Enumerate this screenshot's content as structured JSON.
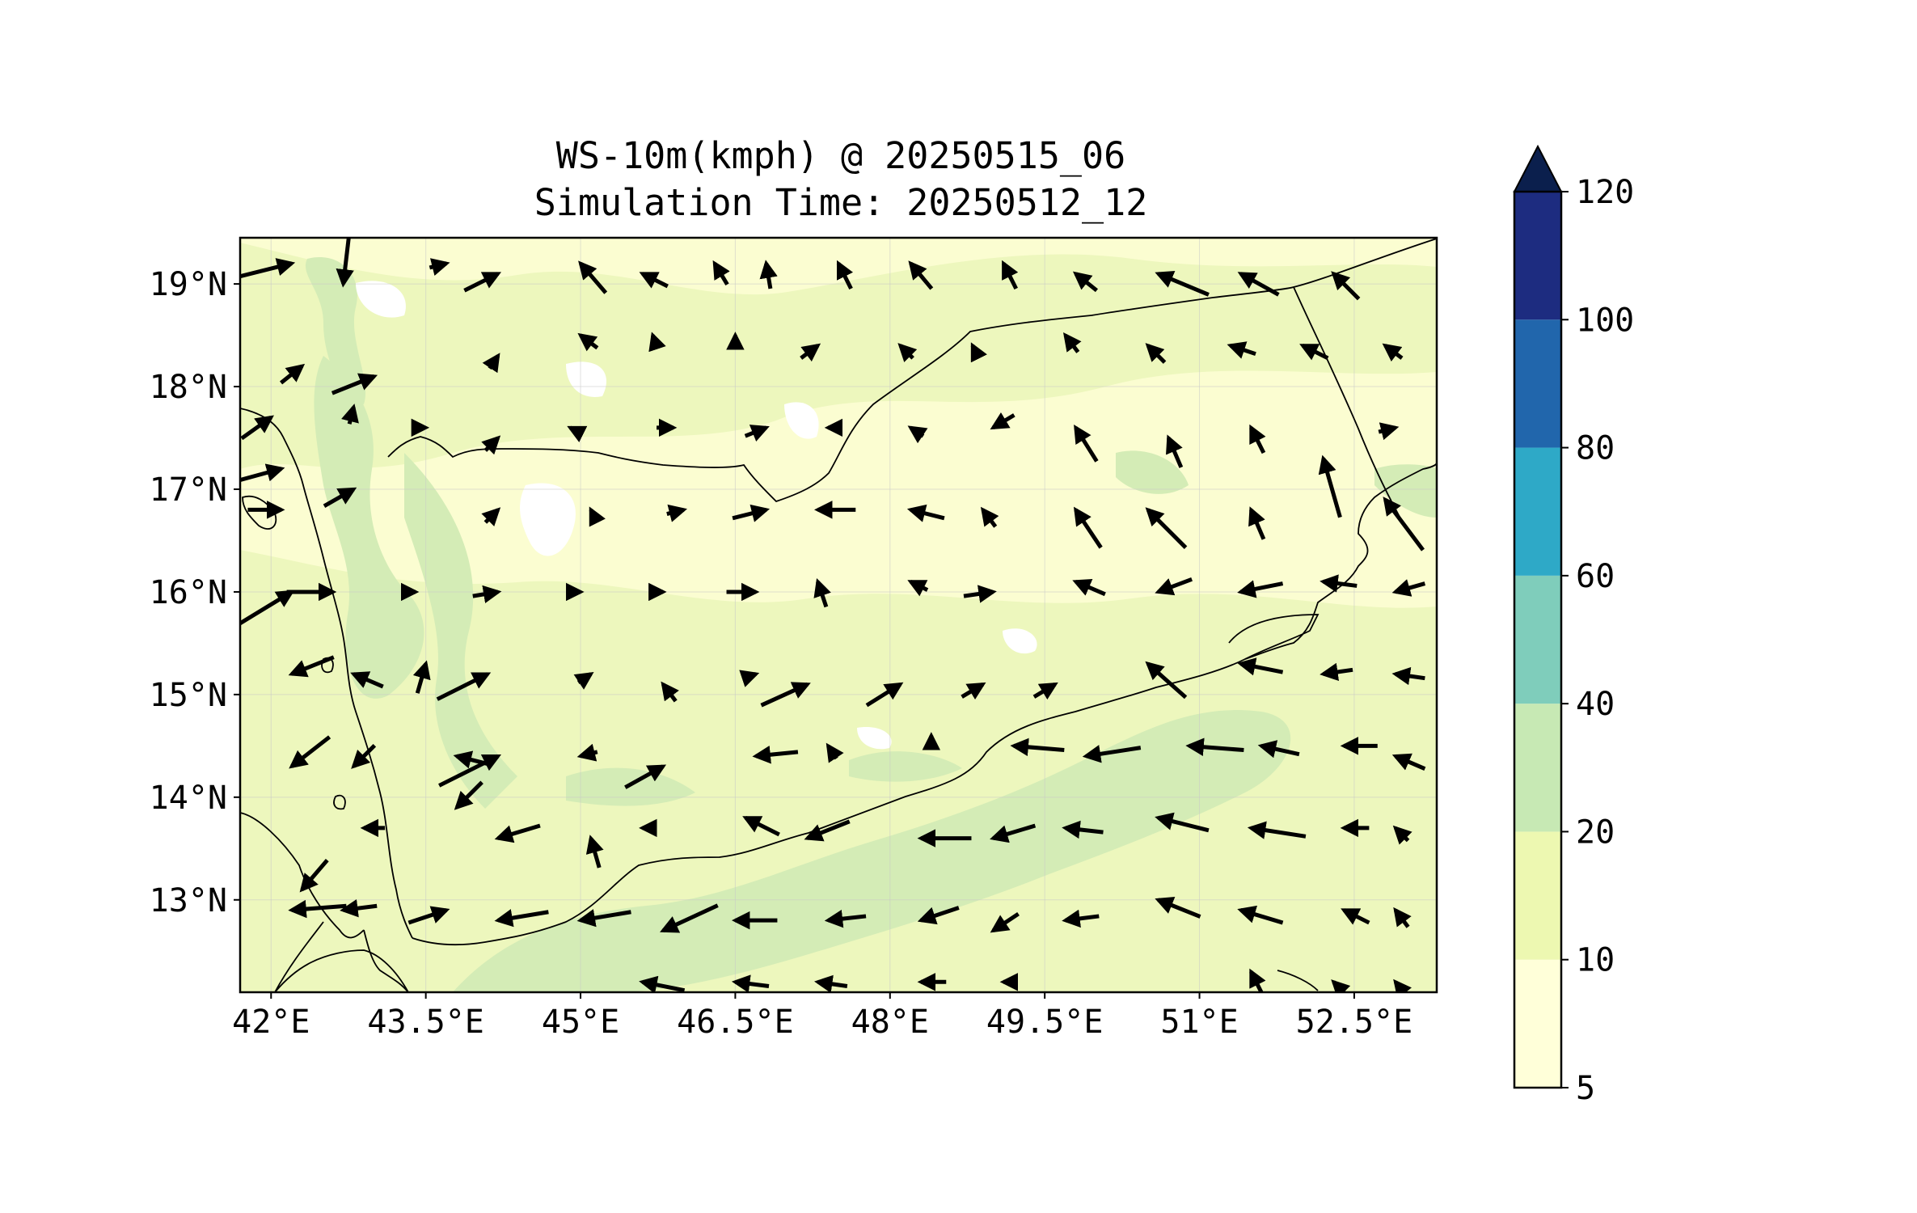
{
  "title": "WS-10m(kmph) @ 20250515_06",
  "subtitle": "Simulation Time: 20250512_12",
  "map": {
    "lon_range": [
      41.7,
      53.3
    ],
    "lat_range": [
      12.1,
      19.45
    ],
    "x_ticks": [
      {
        "value": 42,
        "label": "42°E"
      },
      {
        "value": 43.5,
        "label": "43.5°E"
      },
      {
        "value": 45,
        "label": "45°E"
      },
      {
        "value": 46.5,
        "label": "46.5°E"
      },
      {
        "value": 48,
        "label": "48°E"
      },
      {
        "value": 49.5,
        "label": "49.5°E"
      },
      {
        "value": 51,
        "label": "51°E"
      },
      {
        "value": 52.5,
        "label": "52.5°E"
      }
    ],
    "y_ticks": [
      {
        "value": 13,
        "label": "13°N"
      },
      {
        "value": 14,
        "label": "14°N"
      },
      {
        "value": 15,
        "label": "15°N"
      },
      {
        "value": 16,
        "label": "16°N"
      },
      {
        "value": 17,
        "label": "17°N"
      },
      {
        "value": 18,
        "label": "18°N"
      },
      {
        "value": 19,
        "label": "19°N"
      }
    ],
    "colors": {
      "land_base": "#fbfdd1",
      "band_10_20": "#edf7bd",
      "band_20_40": "#d4ecb6",
      "low_below_5": "#ffffff",
      "border": "#000000",
      "arrow": "#000000"
    }
  },
  "colorbar": {
    "levels": [
      5,
      10,
      20,
      40,
      60,
      80,
      100,
      120
    ],
    "tick_labels": [
      "5",
      "10",
      "20",
      "40",
      "60",
      "80",
      "100",
      "120"
    ],
    "colors": [
      "#ffffd9",
      "#edf8b1",
      "#c7e9b4",
      "#7fcdbb",
      "#2ea9c7",
      "#2166ac",
      "#1d2c80"
    ],
    "extend_color": "#0b1f4d",
    "extend": "max"
  },
  "wind_vectors_kmph": [
    [
      42.2,
      19.2,
      20,
      5
    ],
    [
      42.7,
      19,
      -2,
      -17
    ],
    [
      43.7,
      19.2,
      4,
      1
    ],
    [
      44.2,
      19.1,
      8,
      4
    ],
    [
      45,
      19.2,
      -6,
      7
    ],
    [
      45.6,
      19.1,
      -6,
      3
    ],
    [
      46.3,
      19.2,
      -3,
      5
    ],
    [
      46.8,
      19.2,
      -1,
      6
    ],
    [
      47.5,
      19.2,
      -3,
      6
    ],
    [
      48.2,
      19.2,
      -5,
      6
    ],
    [
      49.1,
      19.2,
      -3,
      6
    ],
    [
      49.8,
      19.1,
      -5,
      4
    ],
    [
      50.6,
      19.1,
      -12,
      5
    ],
    [
      51.4,
      19.1,
      -9,
      5
    ],
    [
      52.3,
      19.1,
      -6,
      6
    ],
    [
      42.3,
      18.2,
      5,
      4
    ],
    [
      43,
      18.1,
      10,
      4
    ],
    [
      44.2,
      18.3,
      2,
      3
    ],
    [
      45,
      18.5,
      -4,
      3
    ],
    [
      45.7,
      18.5,
      -1,
      3
    ],
    [
      46.5,
      18.5,
      0,
      2
    ],
    [
      47.3,
      18.4,
      4,
      3
    ],
    [
      48.1,
      18.4,
      -3,
      3
    ],
    [
      48.8,
      18.4,
      -1,
      2
    ],
    [
      49.7,
      18.5,
      -3,
      4
    ],
    [
      50.5,
      18.4,
      -4,
      4
    ],
    [
      51.3,
      18.4,
      -6,
      2
    ],
    [
      52,
      18.4,
      -6,
      3
    ],
    [
      52.8,
      18.4,
      -4,
      3
    ],
    [
      42.0,
      17.7,
      7,
      5
    ],
    [
      42.8,
      17.8,
      1,
      4
    ],
    [
      43.5,
      17.6,
      0,
      0
    ],
    [
      44.2,
      17.5,
      3,
      3
    ],
    [
      44.9,
      17.6,
      -2,
      1
    ],
    [
      45.9,
      17.6,
      4,
      0
    ],
    [
      46.8,
      17.6,
      5,
      2
    ],
    [
      47.4,
      17.6,
      -3,
      0
    ],
    [
      48.2,
      17.6,
      -3,
      2
    ],
    [
      49,
      17.6,
      -5,
      -3
    ],
    [
      49.8,
      17.6,
      -5,
      8
    ],
    [
      50.7,
      17.5,
      -3,
      7
    ],
    [
      51.5,
      17.6,
      -3,
      6
    ],
    [
      52.2,
      17.3,
      -4,
      14
    ],
    [
      52.9,
      17.6,
      4,
      1
    ],
    [
      42.1,
      17.2,
      22,
      6
    ],
    [
      42.8,
      17,
      7,
      4
    ],
    [
      42.1,
      16.8,
      8,
      0
    ],
    [
      44.2,
      16.8,
      3,
      3
    ],
    [
      45.1,
      16.8,
      -1,
      2
    ],
    [
      46.0,
      16.8,
      4,
      1
    ],
    [
      46.8,
      16.8,
      8,
      2
    ],
    [
      47.3,
      16.8,
      -9,
      0
    ],
    [
      48.2,
      16.8,
      -8,
      2
    ],
    [
      48.9,
      16.8,
      -3,
      4
    ],
    [
      49.8,
      16.8,
      -6,
      9
    ],
    [
      50.5,
      16.8,
      -9,
      9
    ],
    [
      51.5,
      16.8,
      -3,
      7
    ],
    [
      52.8,
      16.9,
      -9,
      12
    ],
    [
      42.2,
      16.0,
      23,
      14
    ],
    [
      42.6,
      16,
      11,
      0
    ],
    [
      43.4,
      16,
      2,
      0
    ],
    [
      44.2,
      16,
      6,
      1
    ],
    [
      45.0,
      16,
      3,
      0
    ],
    [
      45.8,
      16,
      2,
      0
    ],
    [
      46.7,
      16,
      7,
      0
    ],
    [
      47.3,
      16.1,
      -2,
      6
    ],
    [
      48.2,
      16.1,
      -4,
      2
    ],
    [
      49,
      16.0,
      7,
      1
    ],
    [
      49.8,
      16.1,
      -7,
      3
    ],
    [
      50.6,
      16.0,
      -8,
      -3
    ],
    [
      51.4,
      16.0,
      -10,
      -2
    ],
    [
      52.2,
      16.1,
      -8,
      1
    ],
    [
      52.9,
      16.0,
      -7,
      -2
    ],
    [
      42.2,
      15.2,
      -10,
      -4
    ],
    [
      42.8,
      15.2,
      -7,
      3
    ],
    [
      43.5,
      15.3,
      2,
      7
    ],
    [
      44.1,
      15.2,
      12,
      6
    ],
    [
      45.1,
      15.2,
      3,
      2
    ],
    [
      45.8,
      15.1,
      -3,
      4
    ],
    [
      46.7,
      15.2,
      3,
      1
    ],
    [
      47.2,
      15.1,
      11,
      5
    ],
    [
      48.1,
      15.1,
      8,
      5
    ],
    [
      48.9,
      15.1,
      5,
      3
    ],
    [
      49.6,
      15.1,
      5,
      3
    ],
    [
      50.5,
      15.3,
      -9,
      8
    ],
    [
      51.4,
      15.3,
      -10,
      2
    ],
    [
      52.2,
      15.2,
      -7,
      -1
    ],
    [
      52.9,
      15.2,
      -7,
      1
    ],
    [
      42.2,
      14.3,
      -9,
      -7
    ],
    [
      42.8,
      14.3,
      -5,
      -5
    ],
    [
      43.8,
      14.4,
      -8,
      2
    ],
    [
      44.2,
      14.4,
      14,
      7
    ],
    [
      45,
      14.4,
      -4,
      -1
    ],
    [
      45.8,
      14.3,
      9,
      5
    ],
    [
      46.7,
      14.4,
      -10,
      -1
    ],
    [
      47.4,
      14.5,
      -2,
      3
    ],
    [
      48.4,
      14.6,
      0,
      3
    ],
    [
      49.2,
      14.5,
      -12,
      1
    ],
    [
      49.9,
      14.4,
      -13,
      -2
    ],
    [
      50.9,
      14.5,
      -13,
      1
    ],
    [
      51.6,
      14.5,
      -9,
      2
    ],
    [
      52.4,
      14.5,
      -8,
      0
    ],
    [
      52.9,
      14.4,
      -7,
      3
    ],
    [
      42.3,
      13.1,
      -6,
      -7
    ],
    [
      42.9,
      13.7,
      -5,
      0
    ],
    [
      43.8,
      13.9,
      -6,
      -6
    ],
    [
      44.2,
      13.6,
      -10,
      -3
    ],
    [
      45.1,
      13.6,
      -2,
      7
    ],
    [
      45.6,
      13.7,
      -2,
      0
    ],
    [
      46.6,
      13.8,
      -8,
      4
    ],
    [
      47.2,
      13.6,
      -10,
      -4
    ],
    [
      48.3,
      13.6,
      -12,
      0
    ],
    [
      49,
      13.6,
      -10,
      -3
    ],
    [
      49.7,
      13.7,
      -9,
      1
    ],
    [
      50.6,
      13.8,
      -12,
      3
    ],
    [
      51.5,
      13.7,
      -13,
      2
    ],
    [
      52.4,
      13.7,
      -6,
      0
    ],
    [
      52.9,
      13.7,
      -3,
      3
    ],
    [
      42.2,
      12.9,
      -13,
      -1
    ],
    [
      42.7,
      12.9,
      -8,
      -1
    ],
    [
      43.7,
      12.9,
      9,
      3
    ],
    [
      44.2,
      12.8,
      -12,
      -2
    ],
    [
      45.0,
      12.8,
      -12,
      -2
    ],
    [
      45.8,
      12.7,
      -13,
      -6
    ],
    [
      46.5,
      12.8,
      -10,
      0
    ],
    [
      47.4,
      12.8,
      -9,
      -1
    ],
    [
      48.3,
      12.8,
      -9,
      -3
    ],
    [
      49,
      12.7,
      -6,
      -4
    ],
    [
      49.7,
      12.8,
      -8,
      -1
    ],
    [
      50.6,
      13.0,
      -10,
      4
    ],
    [
      51.4,
      12.9,
      -10,
      3
    ],
    [
      52.4,
      12.9,
      -6,
      3
    ],
    [
      52.9,
      12.9,
      -3,
      4
    ],
    [
      45.6,
      12.2,
      -10,
      2
    ],
    [
      46.5,
      12.2,
      -8,
      1
    ],
    [
      47.3,
      12.2,
      -7,
      1
    ],
    [
      48.3,
      12.2,
      -6,
      0
    ],
    [
      49.1,
      12.2,
      -3,
      0
    ],
    [
      51.5,
      12.3,
      -3,
      6
    ],
    [
      52.3,
      12.2,
      -5,
      5
    ],
    [
      52.9,
      12.2,
      -4,
      5
    ]
  ]
}
